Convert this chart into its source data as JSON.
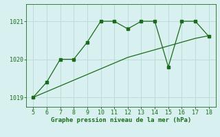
{
  "x": [
    5,
    6,
    7,
    8,
    9,
    10,
    11,
    12,
    13,
    14,
    15,
    16,
    17,
    18
  ],
  "y_jagged": [
    1019.0,
    1019.4,
    1020.0,
    1020.0,
    1020.45,
    1021.0,
    1021.0,
    1020.8,
    1021.0,
    1021.0,
    1019.8,
    1021.0,
    1021.0,
    1020.6
  ],
  "y_smooth": [
    1019.0,
    1019.15,
    1019.3,
    1019.45,
    1019.6,
    1019.75,
    1019.9,
    1020.05,
    1020.15,
    1020.25,
    1020.35,
    1020.45,
    1020.55,
    1020.62
  ],
  "line_color": "#1a6b1a",
  "bg_color": "#d8f0f0",
  "grid_color": "#b8d8d8",
  "xlabel": "Graphe pression niveau de la mer (hPa)",
  "xlabel_color": "#1a6b1a",
  "tick_color": "#1a6b1a",
  "ylim": [
    1018.75,
    1021.45
  ],
  "xlim": [
    4.5,
    18.5
  ],
  "yticks": [
    1019,
    1020,
    1021
  ],
  "xticks": [
    5,
    6,
    7,
    8,
    9,
    10,
    11,
    12,
    13,
    14,
    15,
    16,
    17,
    18
  ],
  "figwidth": 3.2,
  "figheight": 2.0,
  "dpi": 100
}
